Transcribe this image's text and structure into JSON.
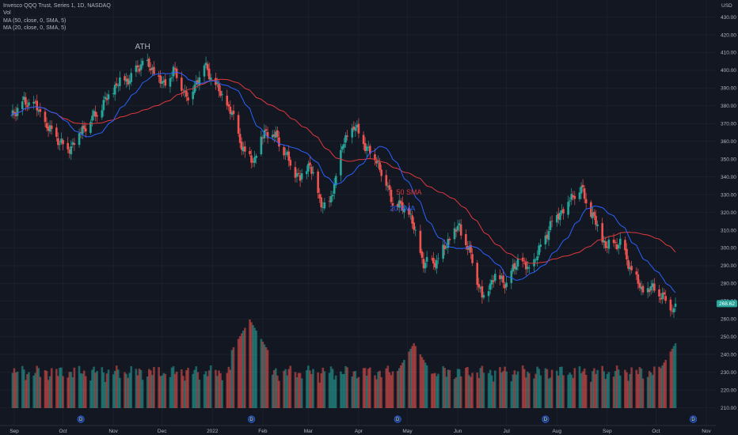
{
  "header": {
    "symbol_line": "Invesco QQQ Trust, Series 1, 1D, NASDAQ",
    "vol_line": "Vol",
    "ma50_line": "MA (50, close, 0, SMA, 5)",
    "ma20_line": "MA (20, close, 0, SMA, 5)"
  },
  "colors": {
    "background": "#131722",
    "up": "#26a69a",
    "down": "#ef5350",
    "ma50": "#e0393e",
    "ma20": "#2962ff",
    "grid": "#1e222d",
    "price_tag": "#26a69a"
  },
  "chart_data": {
    "type": "candlestick",
    "title": "Invesco QQQ Trust, Series 1, 1D, NASDAQ",
    "currency": "USD",
    "last_price": "268.62",
    "y_ticks": [
      "430.00",
      "420.00",
      "410.00",
      "400.00",
      "390.00",
      "380.00",
      "370.00",
      "360.00",
      "350.00",
      "340.00",
      "330.00",
      "320.00",
      "310.00",
      "300.00",
      "290.00",
      "280.00",
      "270.00",
      "260.00",
      "250.00",
      "240.00",
      "230.00",
      "220.00",
      "210.00"
    ],
    "x_ticks": [
      "Sep",
      "Oct",
      "Nov",
      "Dec",
      "2022",
      "Feb",
      "Mar",
      "Apr",
      "May",
      "Jun",
      "Jul",
      "Aug",
      "Sep",
      "Oct",
      "Nov"
    ],
    "grid": true,
    "close_path": [
      [
        "2021-08-30",
        375
      ],
      [
        "2021-09-07",
        382
      ],
      [
        "2021-09-14",
        380
      ],
      [
        "2021-09-21",
        368
      ],
      [
        "2021-10-04",
        355
      ],
      [
        "2021-10-13",
        367
      ],
      [
        "2021-10-22",
        376
      ],
      [
        "2021-11-03",
        392
      ],
      [
        "2021-11-12",
        396
      ],
      [
        "2021-11-19",
        405
      ],
      [
        "2021-11-26",
        399
      ],
      [
        "2021-12-02",
        391
      ],
      [
        "2021-12-08",
        400
      ],
      [
        "2021-12-17",
        384
      ],
      [
        "2021-12-27",
        403
      ],
      [
        "2022-01-05",
        388
      ],
      [
        "2022-01-13",
        375
      ],
      [
        "2022-01-21",
        352
      ],
      [
        "2022-01-27",
        350
      ],
      [
        "2022-02-02",
        366
      ],
      [
        "2022-02-10",
        362
      ],
      [
        "2022-02-18",
        347
      ],
      [
        "2022-02-24",
        339
      ],
      [
        "2022-03-02",
        348
      ],
      [
        "2022-03-08",
        326
      ],
      [
        "2022-03-14",
        323
      ],
      [
        "2022-03-22",
        357
      ],
      [
        "2022-03-29",
        369
      ],
      [
        "2022-04-05",
        358
      ],
      [
        "2022-04-13",
        348
      ],
      [
        "2022-04-22",
        326
      ],
      [
        "2022-05-02",
        320
      ],
      [
        "2022-05-11",
        291
      ],
      [
        "2022-05-20",
        293
      ],
      [
        "2022-05-27",
        306
      ],
      [
        "2022-06-02",
        312
      ],
      [
        "2022-06-10",
        293
      ],
      [
        "2022-06-16",
        272
      ],
      [
        "2022-06-24",
        285
      ],
      [
        "2022-07-01",
        280
      ],
      [
        "2022-07-08",
        293
      ],
      [
        "2022-07-15",
        287
      ],
      [
        "2022-07-22",
        300
      ],
      [
        "2022-07-29",
        315
      ],
      [
        "2022-08-05",
        322
      ],
      [
        "2022-08-12",
        331
      ],
      [
        "2022-08-16",
        333
      ],
      [
        "2022-08-23",
        318
      ],
      [
        "2022-08-31",
        301
      ],
      [
        "2022-09-09",
        303
      ],
      [
        "2022-09-13",
        293
      ],
      [
        "2022-09-22",
        276
      ],
      [
        "2022-09-30",
        277
      ],
      [
        "2022-10-07",
        271
      ],
      [
        "2022-10-12",
        265
      ],
      [
        "2022-10-13",
        268.62
      ]
    ],
    "volume_peaks": [
      {
        "date": "2022-01-24",
        "level": "highest"
      },
      {
        "date": "2022-05-05",
        "level": "high"
      },
      {
        "date": "2022-10-13",
        "level": "high"
      }
    ],
    "series": [
      {
        "name": "20 SMA",
        "type": "line",
        "window": 20
      },
      {
        "name": "50 SMA",
        "type": "line",
        "window": 50
      },
      {
        "name": "Vol",
        "type": "bar"
      }
    ],
    "annotations": [
      {
        "text": "ATH",
        "date": "2021-11-19",
        "value": 412
      },
      {
        "text": "50 SMA",
        "date": "2022-05-02",
        "value": 330
      },
      {
        "text": "20 SMA",
        "date": "2022-04-28",
        "value": 321
      }
    ],
    "event_markers": [
      "D",
      "D",
      "D",
      "D",
      "D"
    ]
  }
}
